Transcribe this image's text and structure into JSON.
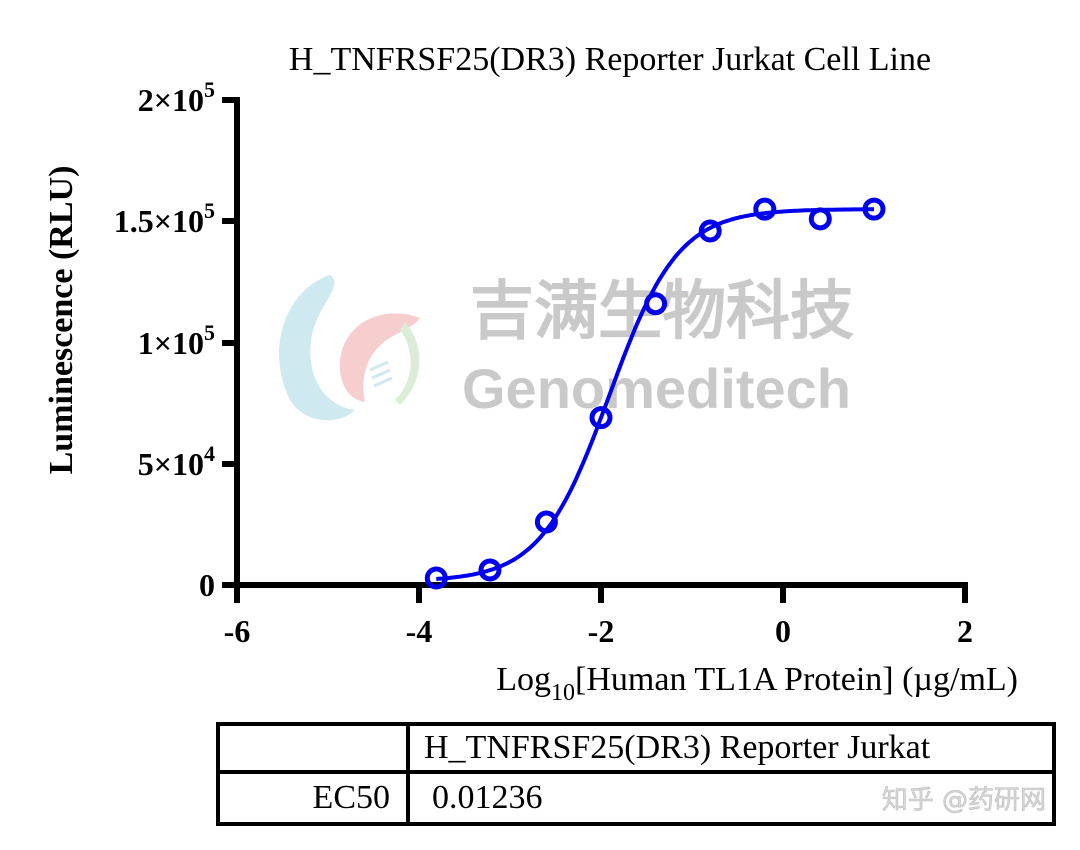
{
  "chart_data": {
    "type": "scatter",
    "title": "H_TNFRSF25(DR3) Reporter Jurkat Cell Line",
    "xlabel": "Log10[Human TL1A Protein] (µg/mL)",
    "xlabel_parts": {
      "pre": "Log",
      "sub": "10",
      "post": "[Human TL1A Protein] (µg/mL)"
    },
    "ylabel": "Luminescence (RLU)",
    "xlim": [
      -6,
      2
    ],
    "ylim": [
      0,
      200000
    ],
    "x_ticks": [
      -6,
      -4,
      -2,
      0,
      2
    ],
    "x_tick_labels": [
      "-6",
      "-4",
      "-2",
      "0",
      "2"
    ],
    "y_ticks": [
      0,
      50000,
      100000,
      150000,
      200000
    ],
    "y_tick_labels": [
      {
        "base": "0",
        "exp": ""
      },
      {
        "base": "5×10",
        "exp": "4"
      },
      {
        "base": "1×10",
        "exp": "5"
      },
      {
        "base": "1.5×10",
        "exp": "5"
      },
      {
        "base": "2×10",
        "exp": "5"
      }
    ],
    "grid": false,
    "legend": null,
    "series": [
      {
        "name": "H_TNFRSF25(DR3) Reporter Jurkat",
        "color": "#0000ee",
        "marker": "open-circle",
        "x": [
          -3.81,
          -3.22,
          -2.6,
          -2.0,
          -1.4,
          -0.8,
          -0.2,
          0.41,
          1.0
        ],
        "y": [
          2900,
          6200,
          26000,
          69000,
          116000,
          146000,
          155000,
          151000,
          155000
        ]
      }
    ],
    "fit": {
      "type": "4PL sigmoidal",
      "bottom": 1500,
      "top": 155000,
      "log_ec50": -1.908,
      "hill_slope": 1.15
    }
  },
  "watermark": {
    "chinese": "吉满生物科技",
    "english": "Genomeditech",
    "corner": "知乎 @药研网"
  },
  "table": {
    "header": [
      "",
      "H_TNFRSF25(DR3) Reporter Jurkat"
    ],
    "rows": [
      {
        "label": "EC50",
        "value": "0.01236"
      }
    ]
  }
}
